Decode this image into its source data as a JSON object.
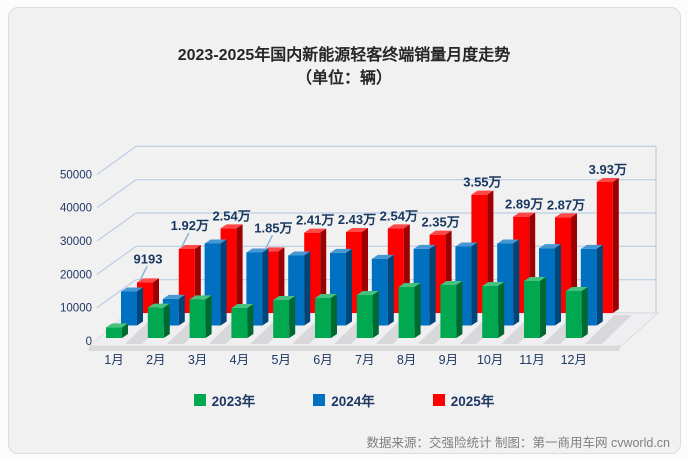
{
  "page": {
    "title_line1": "2023-2025年国内新能源轻客终端销量月度走势",
    "title_line2": "（单位：辆）"
  },
  "chart_data": {
    "type": "bar",
    "style": "3d-clustered-column",
    "title": "2023-2025年国内新能源轻客终端销量月度走势（单位：辆）",
    "xlabel": "",
    "ylabel": "",
    "ylim": [
      0,
      50000
    ],
    "ytick_interval": 10000,
    "yticks": [
      "0",
      "10000",
      "20000",
      "30000",
      "40000",
      "50000"
    ],
    "grid": "on",
    "legend_position": "bottom",
    "categories": [
      "1月",
      "2月",
      "3月",
      "4月",
      "5月",
      "6月",
      "7月",
      "8月",
      "9月",
      "10月",
      "11月",
      "12月"
    ],
    "series": [
      {
        "name": "2023年",
        "color": "#00a94f",
        "values": [
          3200,
          9100,
          11600,
          9000,
          11400,
          12000,
          12900,
          15300,
          15900,
          15600,
          17100,
          14100
        ]
      },
      {
        "name": "2024年",
        "color": "#0070c0",
        "values": [
          10200,
          8000,
          24600,
          21900,
          21000,
          21800,
          20000,
          23000,
          23700,
          24600,
          23200,
          23000
        ]
      },
      {
        "name": "2025年",
        "color": "#fe0000",
        "values": [
          9193,
          19200,
          25400,
          18500,
          24100,
          24300,
          25400,
          23500,
          35500,
          28900,
          28700,
          39300
        ],
        "data_labels": [
          "9193",
          "1.92万",
          "2.54万",
          "1.85万",
          "2.41万",
          "2.43万",
          "2.54万",
          "2.35万",
          "3.55万",
          "2.89万",
          "2.87万",
          "3.93万"
        ],
        "callout_label_indices": [
          0,
          1,
          3
        ]
      }
    ],
    "colors_meta": {
      "axis_text": "#1f3864",
      "data_label_text": "#17375e",
      "gridline": "#bccce4",
      "callout_line": "#8eb4dc",
      "floor_fill": "#efeff1",
      "floor_edge": "#dbdbde"
    }
  },
  "footer": {
    "source_text": "数据来源：交强险统计 制图：第一商用车网 cvworld.cn"
  }
}
